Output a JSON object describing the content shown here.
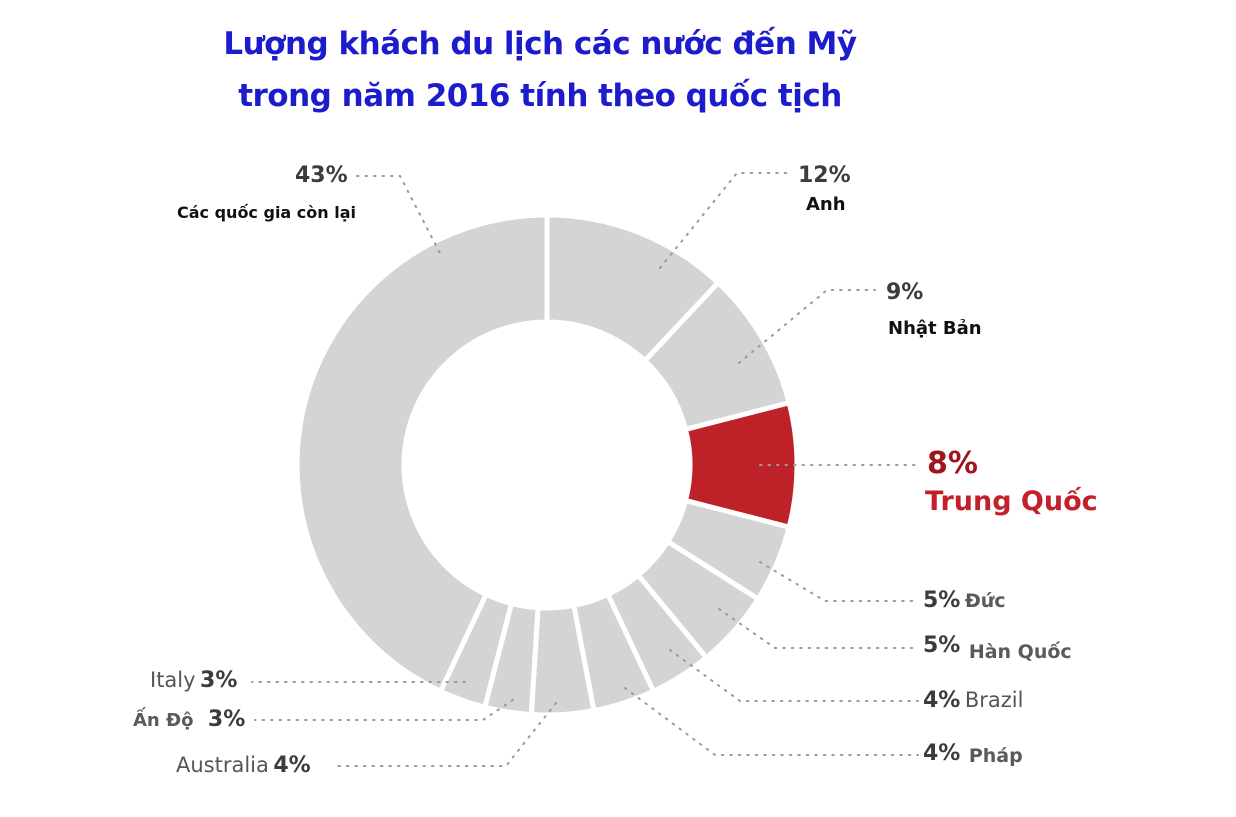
{
  "chart_data": {
    "type": "pie",
    "variant": "donut",
    "title": "Lượng khách du lịch các nước đến Mỹ trong năm 2016 tính theo quốc tịch",
    "title_lines": [
      "Lượng khách du lịch các nước đến Mỹ",
      "trong năm 2016 tính theo quốc tịch"
    ],
    "unit": "%",
    "start_angle_deg": 0,
    "direction": "clockwise",
    "categories": [
      "Anh",
      "Nhật Bản",
      "Trung Quốc",
      "Đức",
      "Hàn Quốc",
      "Brazil",
      "Pháp",
      "Australia",
      "Ấn Độ",
      "Italy",
      "Các quốc gia còn lại"
    ],
    "values": [
      12,
      9,
      8,
      5,
      5,
      4,
      4,
      4,
      3,
      3,
      43
    ],
    "highlight": "Trung Quốc",
    "colors": {
      "default": "#d4d4d4",
      "highlight": "#be2228",
      "separator": "#ffffff"
    }
  },
  "labels": {
    "others": {
      "pct": "43%",
      "name": "Các quốc gia còn lại"
    },
    "uk": {
      "pct": "12%",
      "name": "Anh"
    },
    "japan": {
      "pct": "9%",
      "name": "Nhật Bản"
    },
    "china": {
      "pct": "8%",
      "name": "Trung Quốc"
    },
    "germany": {
      "pct": "5%",
      "name": "Đức"
    },
    "korea": {
      "pct": "5%",
      "name": "Hàn Quốc"
    },
    "brazil": {
      "pct": "4%",
      "name": "Brazil"
    },
    "france": {
      "pct": "4%",
      "name": "Pháp"
    },
    "italy": {
      "pct": "3%",
      "name": "Italy"
    },
    "india": {
      "pct": "3%",
      "name": "Ấn Độ"
    },
    "australia": {
      "pct": "4%",
      "name": "Australia"
    }
  }
}
